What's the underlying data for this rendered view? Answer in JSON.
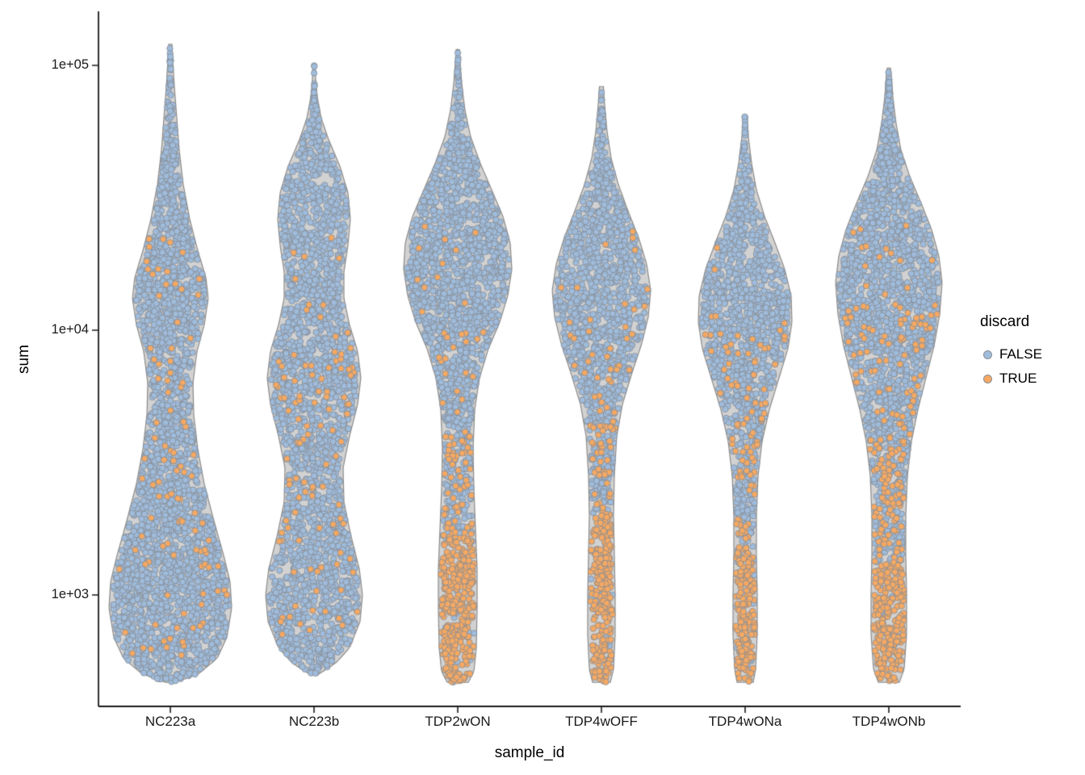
{
  "figure": {
    "background": "#ffffff",
    "axis_color": "#1a1a1a"
  },
  "chart_data": {
    "type": "scatter",
    "subtype": "violin-beeswarm",
    "title": "",
    "xlabel": "sample_id",
    "ylabel": "sum",
    "y_scale": "log10",
    "grid": "off",
    "y_ticks": [
      1000,
      10000,
      100000
    ],
    "y_tick_labels": [
      "1e+03",
      "1e+04",
      "1e+05"
    ],
    "ylim_log10": [
      2.58,
      5.2
    ],
    "categories": [
      "NC223a",
      "NC223b",
      "TDP2wON",
      "TDP4wOFF",
      "TDP4wONa",
      "TDP4wONb"
    ],
    "legend": {
      "title": "discard",
      "position": "right",
      "entries": [
        {
          "label": "FALSE",
          "color": "#9FBCDC"
        },
        {
          "label": "TRUE",
          "color": "#F5A963"
        }
      ]
    },
    "point_style": {
      "radius": 3.7,
      "stroke": "#878c93",
      "stroke_width": 0.8
    },
    "violin_style": {
      "fill": "#d2d2d2",
      "stroke": "#8a8a8a",
      "stroke_width": 1.2
    },
    "samples": [
      {
        "label": "NC223a",
        "n_points": 2700,
        "profile": [
          [
            2.67,
            6
          ],
          [
            2.7,
            34
          ],
          [
            2.76,
            58
          ],
          [
            2.84,
            70
          ],
          [
            2.95,
            76
          ],
          [
            3.05,
            74
          ],
          [
            3.15,
            66
          ],
          [
            3.28,
            54
          ],
          [
            3.42,
            42
          ],
          [
            3.55,
            34
          ],
          [
            3.68,
            29
          ],
          [
            3.8,
            28
          ],
          [
            3.92,
            33
          ],
          [
            4.02,
            42
          ],
          [
            4.12,
            47
          ],
          [
            4.2,
            44
          ],
          [
            4.3,
            34
          ],
          [
            4.42,
            24
          ],
          [
            4.55,
            16
          ],
          [
            4.68,
            11
          ],
          [
            4.8,
            8
          ],
          [
            4.92,
            5
          ],
          [
            5.02,
            3
          ],
          [
            5.08,
            2
          ]
        ],
        "discard_prob_segments": [
          [
            2.72,
            3.1,
            0.03
          ],
          [
            3.1,
            3.9,
            0.06
          ],
          [
            3.9,
            4.35,
            0.04
          ]
        ]
      },
      {
        "label": "NC223b",
        "n_points": 2500,
        "profile": [
          [
            2.7,
            5
          ],
          [
            2.74,
            26
          ],
          [
            2.8,
            44
          ],
          [
            2.9,
            57
          ],
          [
            3.0,
            60
          ],
          [
            3.1,
            56
          ],
          [
            3.22,
            46
          ],
          [
            3.35,
            37
          ],
          [
            3.48,
            36
          ],
          [
            3.6,
            44
          ],
          [
            3.72,
            54
          ],
          [
            3.82,
            58
          ],
          [
            3.92,
            54
          ],
          [
            4.02,
            44
          ],
          [
            4.12,
            37
          ],
          [
            4.22,
            37
          ],
          [
            4.32,
            42
          ],
          [
            4.42,
            45
          ],
          [
            4.52,
            42
          ],
          [
            4.62,
            32
          ],
          [
            4.72,
            18
          ],
          [
            4.8,
            9
          ],
          [
            4.88,
            4
          ],
          [
            4.95,
            2
          ],
          [
            5.0,
            1.5
          ]
        ],
        "discard_prob_segments": [
          [
            2.72,
            3.1,
            0.04
          ],
          [
            3.1,
            3.95,
            0.07
          ],
          [
            3.95,
            4.4,
            0.03
          ]
        ]
      },
      {
        "label": "TDP2wON",
        "n_points": 2100,
        "profile": [
          [
            2.67,
            13
          ],
          [
            2.71,
            20
          ],
          [
            2.8,
            23
          ],
          [
            2.95,
            24
          ],
          [
            3.1,
            24
          ],
          [
            3.25,
            22
          ],
          [
            3.4,
            20
          ],
          [
            3.55,
            19
          ],
          [
            3.7,
            21
          ],
          [
            3.82,
            27
          ],
          [
            3.93,
            38
          ],
          [
            4.03,
            52
          ],
          [
            4.13,
            62
          ],
          [
            4.23,
            67
          ],
          [
            4.33,
            65
          ],
          [
            4.43,
            56
          ],
          [
            4.53,
            42
          ],
          [
            4.63,
            28
          ],
          [
            4.73,
            16
          ],
          [
            4.83,
            9
          ],
          [
            4.93,
            5
          ],
          [
            5.03,
            2.5
          ],
          [
            5.06,
            2
          ]
        ],
        "discard_prob_segments": [
          [
            2.67,
            3.22,
            0.92
          ],
          [
            3.22,
            3.6,
            0.25
          ],
          [
            3.6,
            4.0,
            0.08
          ],
          [
            4.0,
            4.4,
            0.015
          ]
        ]
      },
      {
        "label": "TDP4wOFF",
        "n_points": 1600,
        "profile": [
          [
            2.67,
            11
          ],
          [
            2.72,
            15
          ],
          [
            2.85,
            17
          ],
          [
            3.0,
            17
          ],
          [
            3.15,
            16
          ],
          [
            3.3,
            15
          ],
          [
            3.45,
            16
          ],
          [
            3.6,
            19
          ],
          [
            3.72,
            26
          ],
          [
            3.84,
            38
          ],
          [
            3.95,
            50
          ],
          [
            4.05,
            58
          ],
          [
            4.15,
            61
          ],
          [
            4.25,
            56
          ],
          [
            4.35,
            46
          ],
          [
            4.45,
            33
          ],
          [
            4.55,
            21
          ],
          [
            4.65,
            12
          ],
          [
            4.75,
            7
          ],
          [
            4.85,
            4
          ],
          [
            4.92,
            2.5
          ]
        ],
        "discard_prob_segments": [
          [
            2.67,
            3.3,
            0.92
          ],
          [
            3.3,
            3.7,
            0.2
          ],
          [
            3.7,
            4.1,
            0.06
          ],
          [
            4.1,
            4.4,
            0.015
          ]
        ]
      },
      {
        "label": "TDP4wONa",
        "n_points": 1500,
        "profile": [
          [
            2.67,
            10
          ],
          [
            2.72,
            13
          ],
          [
            2.85,
            15
          ],
          [
            3.0,
            15
          ],
          [
            3.15,
            14
          ],
          [
            3.3,
            14
          ],
          [
            3.45,
            16
          ],
          [
            3.58,
            21
          ],
          [
            3.7,
            30
          ],
          [
            3.82,
            42
          ],
          [
            3.93,
            53
          ],
          [
            4.03,
            58
          ],
          [
            4.13,
            57
          ],
          [
            4.23,
            49
          ],
          [
            4.33,
            37
          ],
          [
            4.43,
            24
          ],
          [
            4.53,
            14
          ],
          [
            4.63,
            8
          ],
          [
            4.73,
            4
          ],
          [
            4.81,
            2.5
          ]
        ],
        "discard_prob_segments": [
          [
            2.67,
            3.18,
            0.92
          ],
          [
            3.18,
            3.6,
            0.22
          ],
          [
            3.6,
            4.0,
            0.08
          ],
          [
            4.0,
            4.35,
            0.015
          ]
        ]
      },
      {
        "label": "TDP4wONb",
        "n_points": 2100,
        "profile": [
          [
            2.67,
            13
          ],
          [
            2.72,
            19
          ],
          [
            2.85,
            22
          ],
          [
            3.0,
            22
          ],
          [
            3.15,
            21
          ],
          [
            3.3,
            21
          ],
          [
            3.45,
            23
          ],
          [
            3.58,
            28
          ],
          [
            3.7,
            36
          ],
          [
            3.82,
            46
          ],
          [
            3.94,
            56
          ],
          [
            4.06,
            63
          ],
          [
            4.18,
            66
          ],
          [
            4.28,
            62
          ],
          [
            4.38,
            53
          ],
          [
            4.48,
            40
          ],
          [
            4.58,
            26
          ],
          [
            4.68,
            15
          ],
          [
            4.78,
            9
          ],
          [
            4.88,
            5
          ],
          [
            4.97,
            3
          ],
          [
            4.99,
            2
          ]
        ],
        "discard_prob_segments": [
          [
            2.67,
            3.12,
            0.9
          ],
          [
            3.12,
            3.6,
            0.3
          ],
          [
            3.6,
            4.1,
            0.12
          ],
          [
            4.1,
            4.4,
            0.02
          ]
        ]
      }
    ]
  }
}
